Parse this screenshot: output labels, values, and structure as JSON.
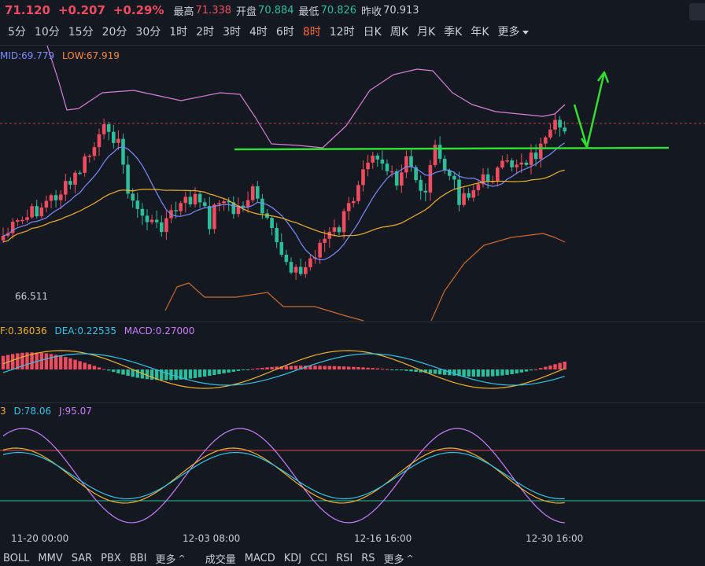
{
  "quote": {
    "price": "71.120",
    "change": "+0.207",
    "change_pct": "+0.29%",
    "high_label": "最高",
    "high": "71.338",
    "open_label": "开盘",
    "open": "70.884",
    "low_label": "最低",
    "low": "70.826",
    "prev_label": "昨收",
    "prev": "70.913"
  },
  "timeframes": [
    "5分",
    "10分",
    "15分",
    "20分",
    "30分",
    "1时",
    "2时",
    "3时",
    "4时",
    "6时",
    "8时",
    "12时",
    "日K",
    "周K",
    "月K",
    "季K",
    "年K"
  ],
  "timeframe_active": "8时",
  "timeframe_more": "更多",
  "main_legend": {
    "mid": "MID:69.779",
    "low": "LOW:67.919"
  },
  "main_low_marker": "66.511",
  "macd_legend": {
    "dif": "F:0.36036",
    "dea": "DEA:0.22535",
    "macd": "MACD:0.27000"
  },
  "kdj_legend": {
    "k": "3",
    "d": "D:78.06",
    "j": "J:95.07"
  },
  "x_labels": [
    "11-20 00:00",
    "12-03 08:00",
    "12-16 16:00",
    "12-30 16:00"
  ],
  "main_indicators": [
    "BOLL",
    "MMV",
    "SAR",
    "PBX",
    "BBI"
  ],
  "main_more": "更多",
  "sub_indicators": [
    "成交量",
    "MACD",
    "KDJ",
    "CCI",
    "RSI",
    "RS"
  ],
  "sub_more": "更多",
  "colors": {
    "up": "#ef4d5f",
    "down": "#2dbd9b",
    "accent": "#ff6a3d",
    "annotation": "#33dd33"
  }
}
